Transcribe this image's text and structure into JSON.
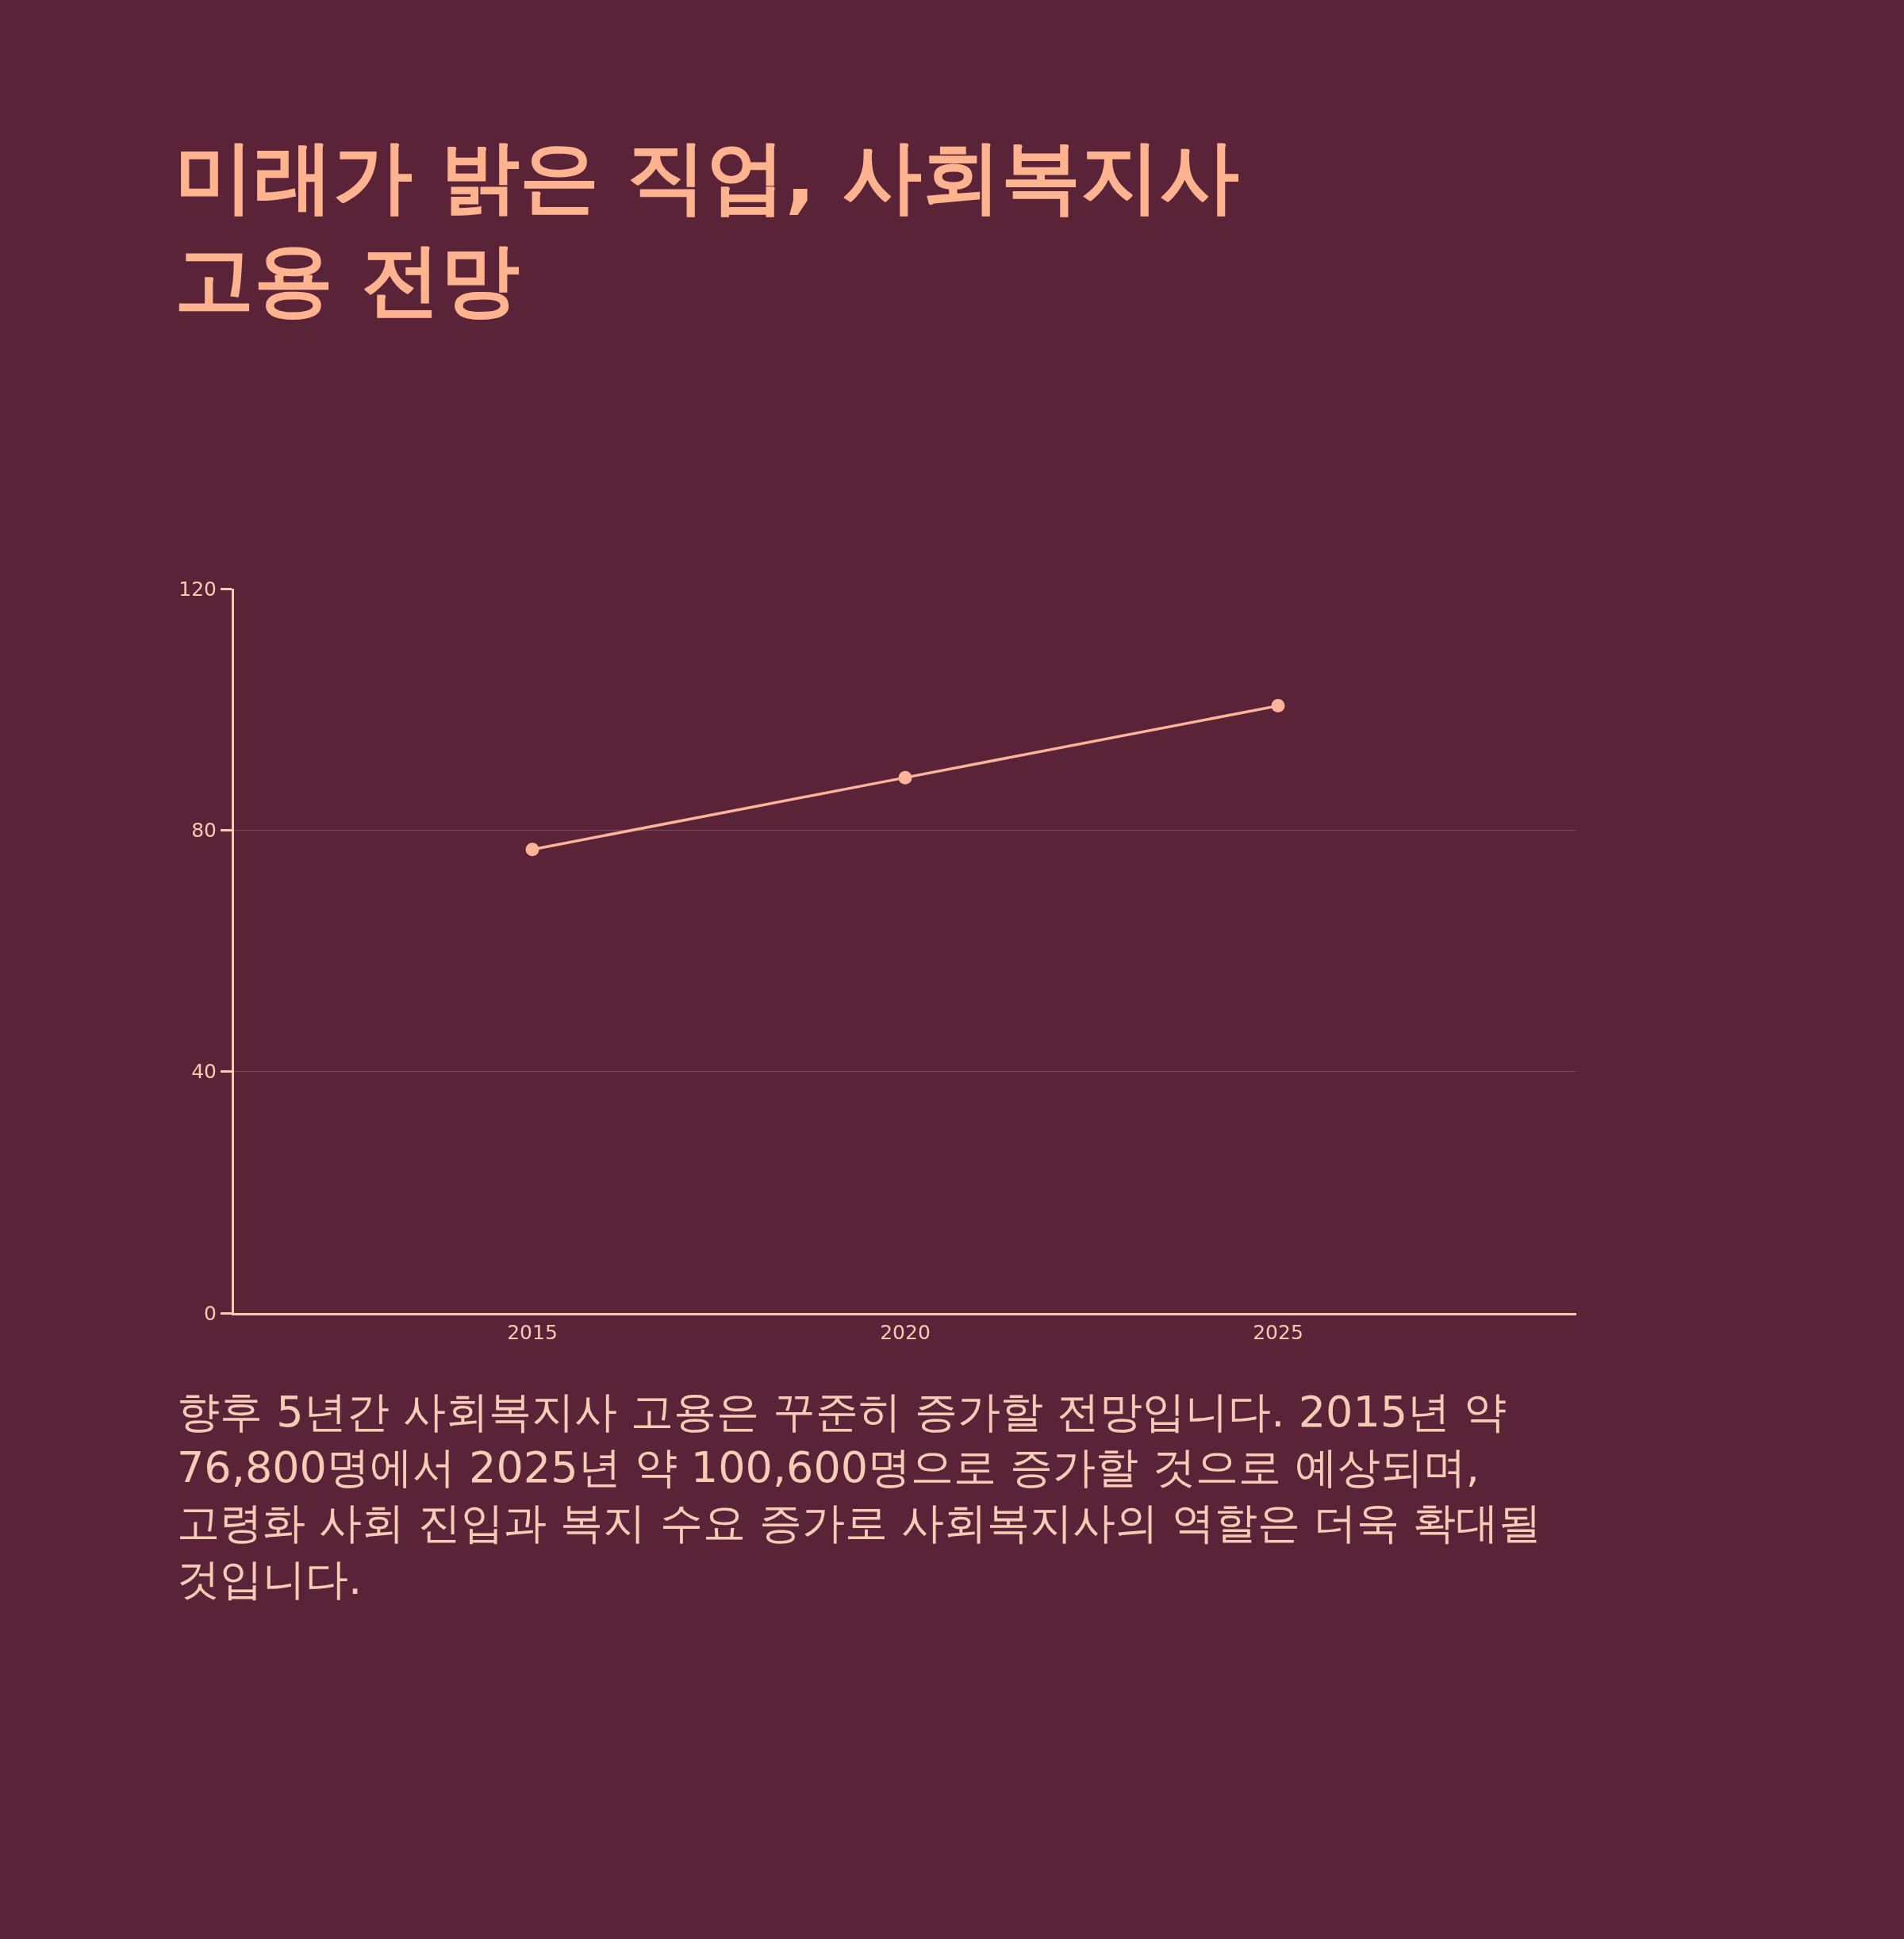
{
  "chart_data": {
    "type": "line",
    "title": "미래가 밝은 직업, 사회복지사 고용 전망",
    "x": [
      2015,
      2020,
      2025
    ],
    "series": [
      {
        "color": "#ffb499",
        "values": [
          76.8,
          88.7,
          100.6
        ]
      }
    ],
    "xlim": [
      2011,
      2029
    ],
    "xticks": [
      2015,
      2020,
      2025
    ],
    "ylim": [
      0,
      120
    ],
    "yticks": [
      0,
      40,
      80,
      120
    ],
    "grid": "y",
    "marker": "circle",
    "line_style": "solid",
    "annotations": [
      "향후 5년간 사회복지사 고용은 꾸준히 증가할 전망입니다. 2015년 약 76,800명에서 2025년 약 100,600명으로 증가할 것으로 예상되며, 고령화 사회 진입과 복지 수요 증가로 사회복지사의 역할은 더욱 확대될 것입니다."
    ]
  }
}
